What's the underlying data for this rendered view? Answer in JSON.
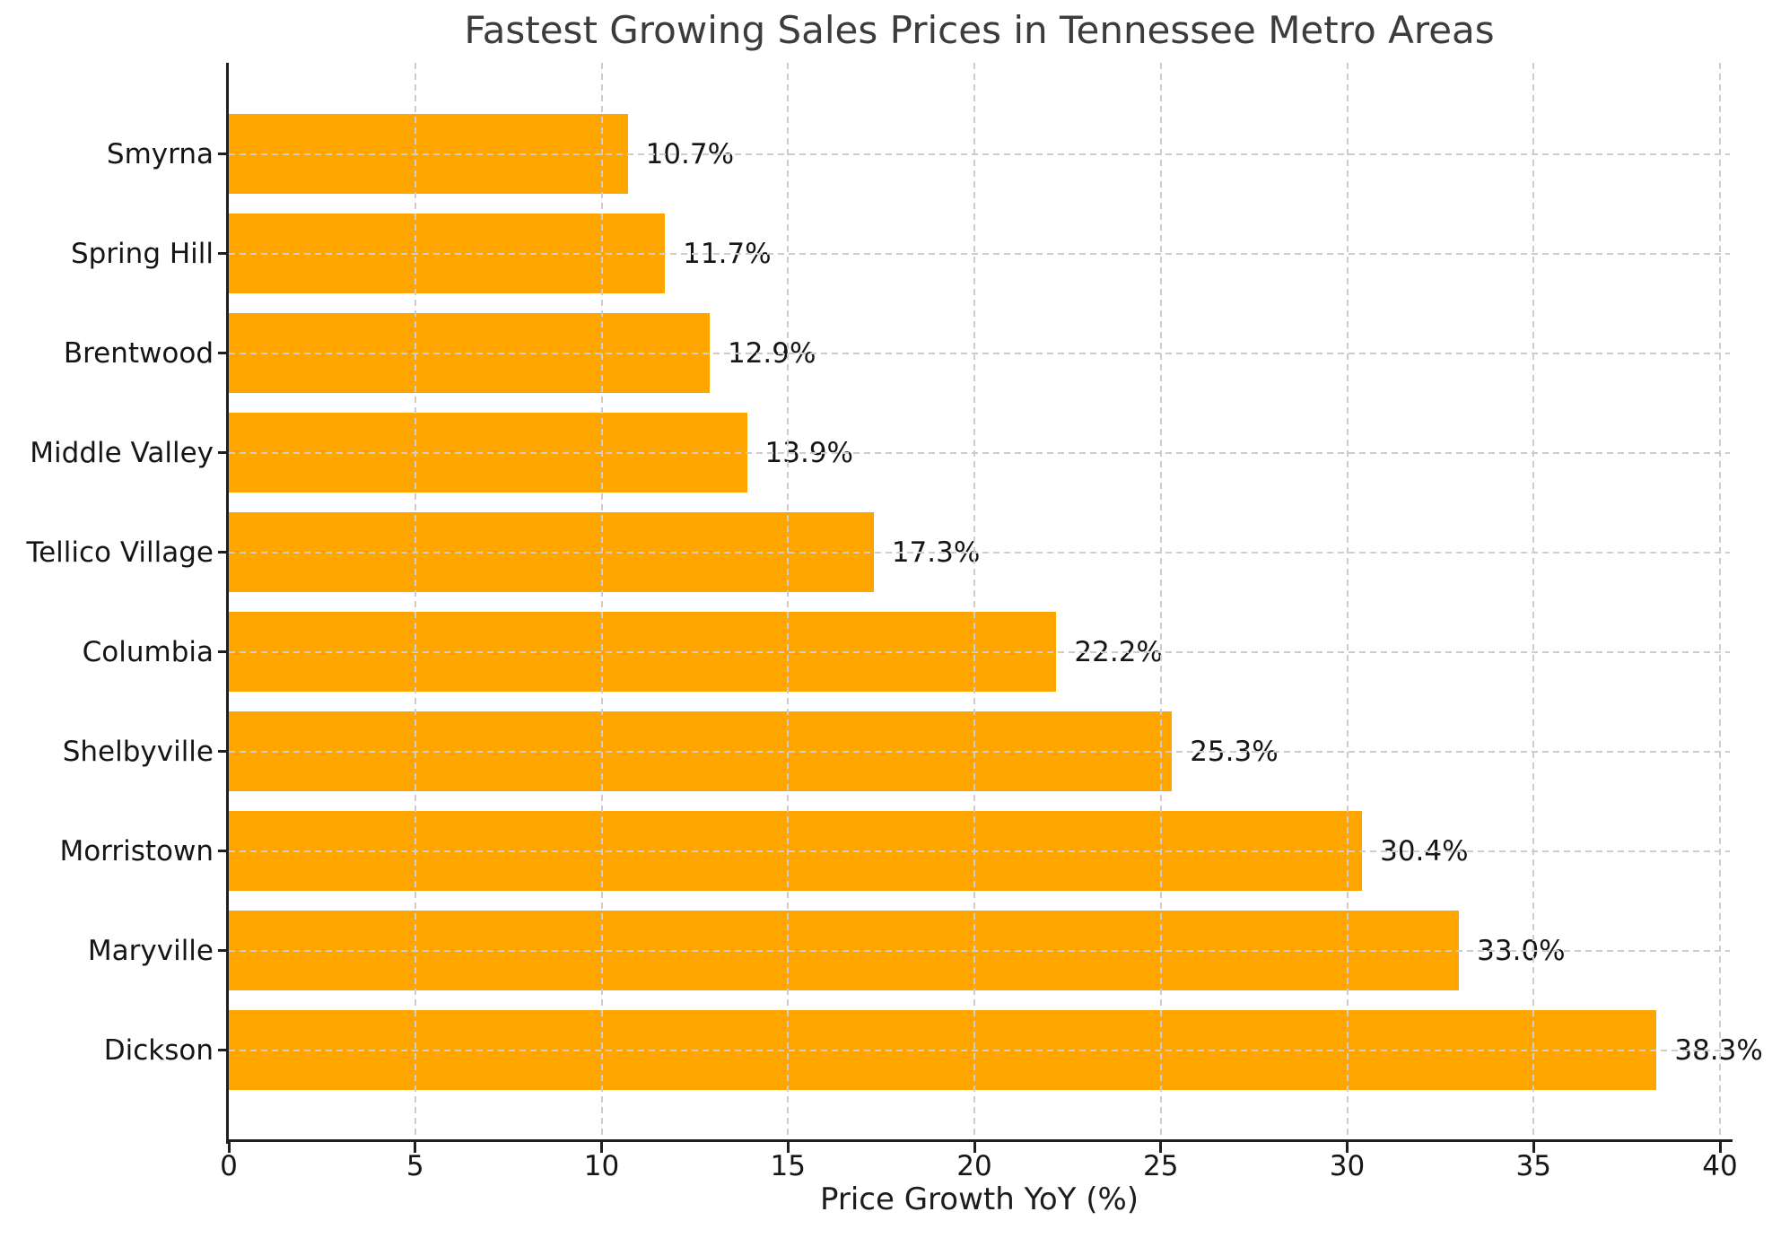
{
  "chart_data": {
    "type": "bar",
    "orientation": "horizontal",
    "title": "Fastest Growing Sales Prices in Tennessee Metro Areas",
    "xlabel": "Price Growth YoY (%)",
    "ylabel": "",
    "categories_top_to_bottom": [
      "Smyrna",
      "Spring Hill",
      "Brentwood",
      "Middle Valley",
      "Tellico Village",
      "Columbia",
      "Shelbyville",
      "Morristown",
      "Maryville",
      "Dickson"
    ],
    "values": [
      10.7,
      11.7,
      12.9,
      13.9,
      17.3,
      22.2,
      25.3,
      30.4,
      33.0,
      38.3
    ],
    "value_labels": [
      "10.7%",
      "11.7%",
      "12.9%",
      "13.9%",
      "17.3%",
      "22.2%",
      "25.3%",
      "30.4%",
      "33.0%",
      "38.3%"
    ],
    "xlim": [
      0,
      40
    ],
    "xticks": [
      0,
      5,
      10,
      15,
      20,
      25,
      30,
      35,
      40
    ],
    "bar_color": "#FFA500",
    "grid": {
      "enabled": true,
      "style": "dashed",
      "color": "#cdcdcd",
      "vertical": true,
      "horizontal": true,
      "above_bars": true
    },
    "legend": null,
    "spine_color": "#1f1f1f",
    "title_color": "#3c3c3c",
    "tick_label_color": "#151515"
  }
}
